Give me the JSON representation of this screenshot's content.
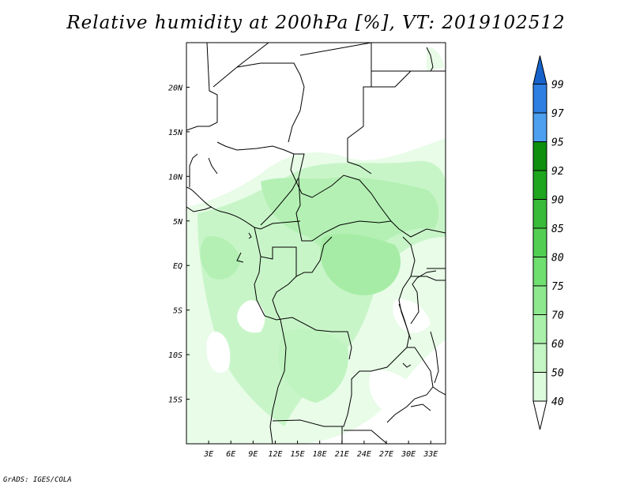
{
  "title": "Relative humidity at 200hPa [%], VT: 2019102512",
  "credit": "GrADS: IGES/COLA",
  "map": {
    "lon_range": [
      0,
      35
    ],
    "lat_range": [
      -20,
      25
    ],
    "lon_ticks": [
      "3E",
      "6E",
      "9E",
      "12E",
      "15E",
      "18E",
      "21E",
      "24E",
      "27E",
      "30E",
      "33E"
    ],
    "lat_ticks": [
      "20N",
      "15N",
      "10N",
      "5N",
      "EQ",
      "5S",
      "10S",
      "15S"
    ]
  },
  "colorbar": {
    "levels": [
      "40",
      "50",
      "60",
      "70",
      "75",
      "80",
      "85",
      "90",
      "92",
      "95",
      "97",
      "99"
    ],
    "colors": [
      "#f0fdf0",
      "#dcfadc",
      "#c4f5c4",
      "#aaf0aa",
      "#8ee98e",
      "#6fdf6f",
      "#52cf52",
      "#38bb38",
      "#1ea61e",
      "#0e8f0e",
      "#4d9ff0",
      "#2d7fe2",
      "#1763cc"
    ],
    "below_color": "#ffffff"
  }
}
